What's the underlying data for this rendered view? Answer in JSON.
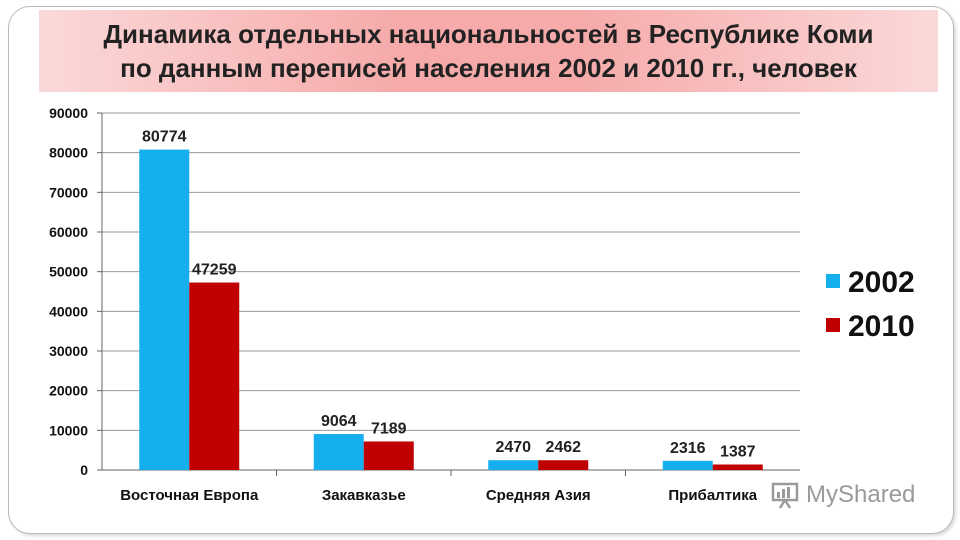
{
  "title": {
    "line1": "Динамика отдельных национальностей в Республике Коми",
    "line2": "по данным переписей населения 2002 и 2010 гг., человек"
  },
  "watermark": {
    "text": "MyShared",
    "icon": "presentation-board-icon"
  },
  "colors": {
    "s2002": "#15aff0",
    "s2010": "#c00000",
    "grid": "#9a9a9a",
    "axis": "#666666"
  },
  "chart_data": {
    "type": "bar",
    "categories": [
      "Восточная Европа",
      "Закавказье",
      "Средняя Азия",
      "Прибалтика"
    ],
    "series": [
      {
        "name": "2002",
        "values": [
          80774,
          9064,
          2470,
          2316
        ]
      },
      {
        "name": "2010",
        "values": [
          47259,
          7189,
          2462,
          1387
        ]
      }
    ],
    "title": "Динамика отдельных национальностей в Республике Коми по данным переписей населения 2002 и 2010 гг., человек",
    "xlabel": "",
    "ylabel": "",
    "ylim": [
      0,
      90000
    ],
    "yticks": [
      0,
      10000,
      20000,
      30000,
      40000,
      50000,
      60000,
      70000,
      80000,
      90000
    ],
    "grid": true,
    "legend": "right"
  }
}
